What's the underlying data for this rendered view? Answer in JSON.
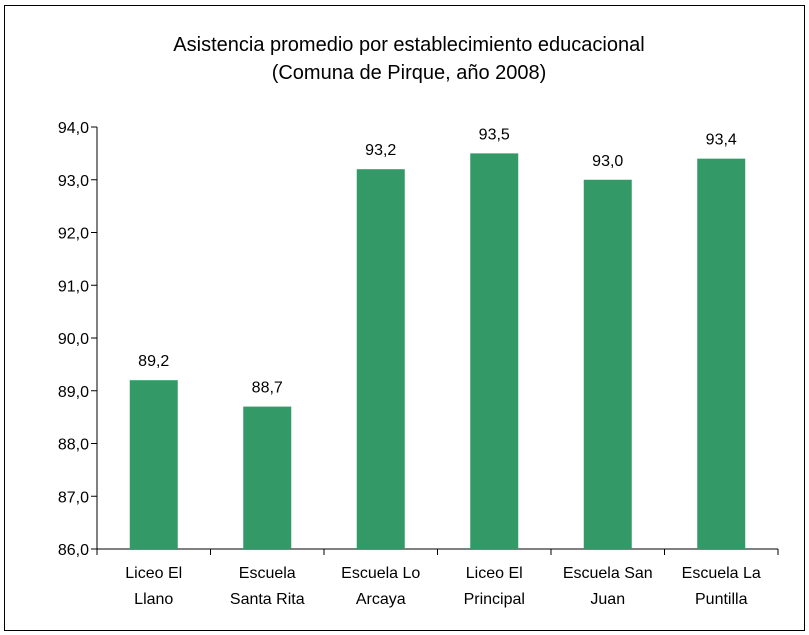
{
  "chart_data": {
    "type": "bar",
    "title_lines": [
      "Asistencia promedio por establecimiento educacional",
      "(Comuna de Pirque, año 2008)"
    ],
    "xlabel": "",
    "ylabel": "",
    "categories": [
      [
        "Liceo El",
        "Llano"
      ],
      [
        "Escuela",
        "Santa Rita"
      ],
      [
        "Escuela Lo",
        "Arcaya"
      ],
      [
        "Liceo El",
        "Principal"
      ],
      [
        "Escuela San",
        "Juan"
      ],
      [
        "Escuela La",
        "Puntilla"
      ]
    ],
    "values": [
      89.2,
      88.7,
      93.2,
      93.5,
      93.0,
      93.4
    ],
    "data_labels": [
      "89,2",
      "88,7",
      "93,2",
      "93,5",
      "93,0",
      "93,4"
    ],
    "ylim": [
      86,
      94
    ],
    "yticks": [
      86,
      87,
      88,
      89,
      90,
      91,
      92,
      93,
      94
    ],
    "ytick_labels": [
      "86,0",
      "87,0",
      "88,0",
      "89,0",
      "90,0",
      "91,0",
      "92,0",
      "93,0",
      "94,0"
    ],
    "bar_color": "#339966",
    "grid": false,
    "legend": "none"
  }
}
